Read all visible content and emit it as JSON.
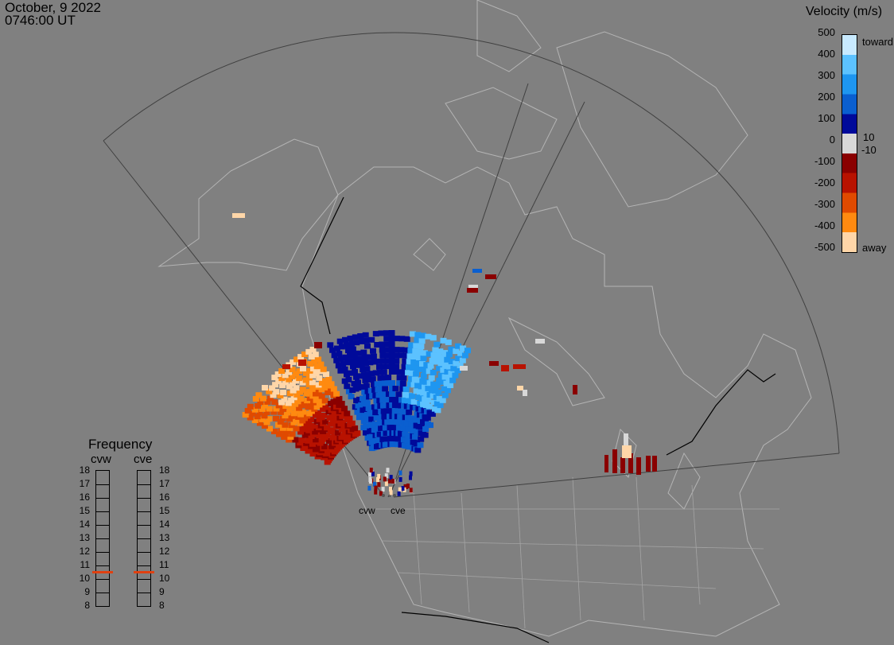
{
  "header": {
    "date": "October, 9 2022",
    "time": "0746:00 UT"
  },
  "legend": {
    "title": "Velocity (m/s)",
    "ticks": [
      "500",
      "400",
      "300",
      "200",
      "100",
      "0",
      "-100",
      "-200",
      "-300",
      "-400",
      "-500"
    ],
    "labels": {
      "toward": "toward",
      "pos10": "10",
      "neg10": "-10",
      "away": "away"
    },
    "scale": [
      {
        "range": [
          400,
          500
        ],
        "color": "#c8eaff"
      },
      {
        "range": [
          300,
          400
        ],
        "color": "#5cc2ff"
      },
      {
        "range": [
          200,
          300
        ],
        "color": "#1e96f0"
      },
      {
        "range": [
          100,
          200
        ],
        "color": "#0a5fd0"
      },
      {
        "range": [
          10,
          100
        ],
        "color": "#000a9a"
      },
      {
        "range": [
          -10,
          10
        ],
        "color": "#d8d8d8"
      },
      {
        "range": [
          -100,
          -10
        ],
        "color": "#8a0000"
      },
      {
        "range": [
          -200,
          -100
        ],
        "color": "#b81200"
      },
      {
        "range": [
          -300,
          -200
        ],
        "color": "#e04a00"
      },
      {
        "range": [
          -400,
          -300
        ],
        "color": "#ff8a10"
      },
      {
        "range": [
          -500,
          -400
        ],
        "color": "#ffd6a8"
      }
    ]
  },
  "frequency": {
    "title": "Frequency",
    "radars": [
      {
        "name": "cvw",
        "freq_mhz": 10.5
      },
      {
        "name": "cve",
        "freq_mhz": 10.5
      }
    ],
    "ticks": [
      "18",
      "17",
      "16",
      "15",
      "14",
      "13",
      "12",
      "11",
      "10",
      "9",
      "8"
    ],
    "indicator_color": "#e04010"
  },
  "map": {
    "sites": [
      {
        "name": "cvw"
      },
      {
        "name": "cve"
      }
    ],
    "fov_line_color": "#404040",
    "coast_color": "#b4b4b4"
  }
}
